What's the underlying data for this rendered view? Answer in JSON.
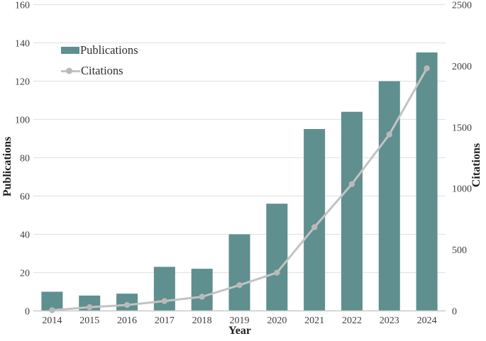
{
  "legend": {
    "publications": "Publications",
    "citations": "Citations"
  },
  "colors": {
    "bar": "#5f8f8f",
    "line": "#c3c3c3",
    "marker": "#b9b9b9",
    "gridline": "#e4e4e4",
    "axis_line": "#c9c9c9",
    "tick_text": "#3f3f3f",
    "title_text": "#1d1d1d"
  },
  "chart_data": {
    "type": "bar",
    "categories": [
      "2014",
      "2015",
      "2016",
      "2017",
      "2018",
      "2019",
      "2020",
      "2021",
      "2022",
      "2023",
      "2024"
    ],
    "series": [
      {
        "name": "Publications",
        "type": "bar",
        "axis": "left",
        "values": [
          10,
          8,
          9,
          23,
          22,
          40,
          56,
          95,
          104,
          120,
          135
        ]
      },
      {
        "name": "Citations",
        "type": "line",
        "axis": "right",
        "values": [
          5,
          30,
          48,
          80,
          115,
          210,
          312,
          683,
          1035,
          1440,
          1980
        ]
      }
    ],
    "title": "",
    "xlabel": "Year",
    "ylabel_left": "Publications",
    "ylabel_right": "Citations",
    "ylim_left": [
      0,
      160
    ],
    "ylim_right": [
      0,
      2500
    ],
    "left_ticks": [
      0,
      20,
      40,
      60,
      80,
      100,
      120,
      140,
      160
    ],
    "right_ticks": [
      0,
      500,
      1000,
      1500,
      2000,
      2500
    ],
    "grid": "horizontal",
    "legend_position": "top-left-inside"
  }
}
